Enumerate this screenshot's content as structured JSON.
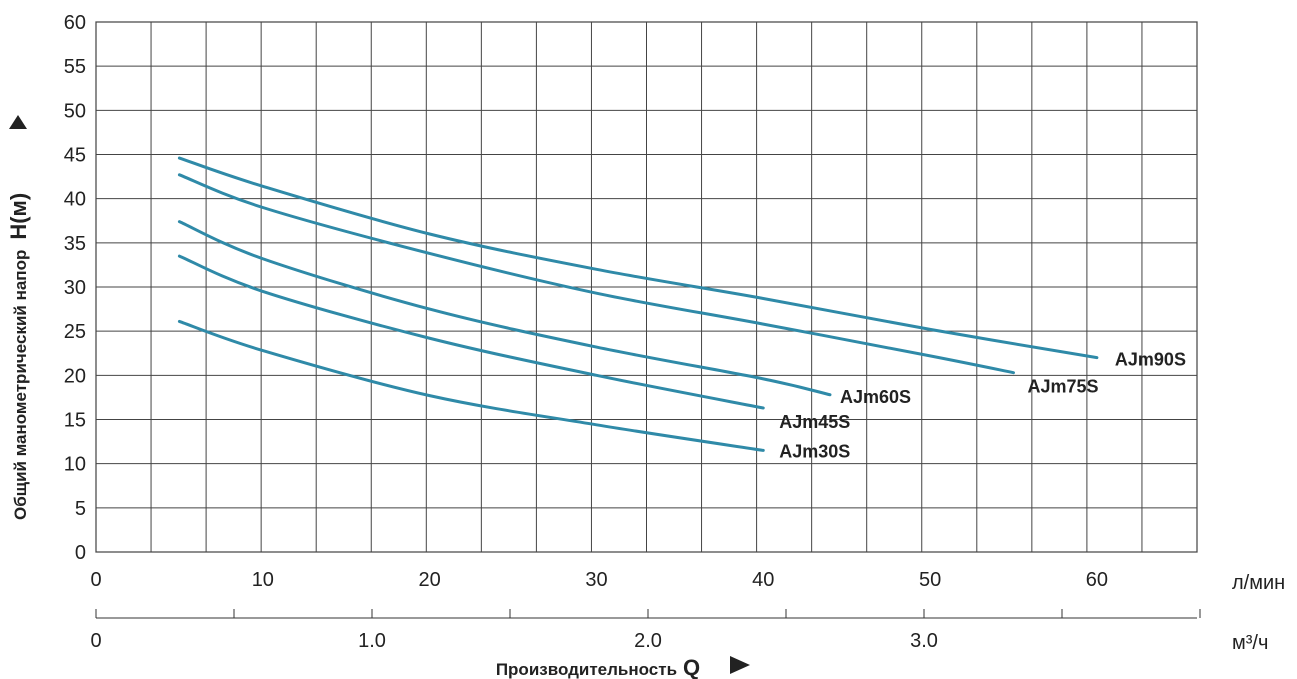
{
  "chart_data": {
    "type": "line",
    "xlabel": "Производительность",
    "xlabel_symbol": "Q",
    "ylabel": "Общий манометрический напор",
    "ylabel_symbol": "H(м)",
    "x_unit": "л/мин",
    "x2_unit": "м³/ч",
    "xlim": [
      0,
      66
    ],
    "ylim": [
      0,
      60
    ],
    "x_ticks": [
      "0",
      "10",
      "20",
      "30",
      "40",
      "50",
      "60"
    ],
    "x2_ticks": [
      "0",
      "1.0",
      "2.0",
      "3.0"
    ],
    "y_ticks": [
      "0",
      "5",
      "10",
      "15",
      "20",
      "25",
      "30",
      "35",
      "40",
      "45",
      "50",
      "55",
      "60"
    ],
    "grid": true,
    "line_color": "#2f8aa8",
    "series": [
      {
        "name": "AJm90S",
        "x": [
          5,
          10,
          20,
          30,
          40,
          50,
          60
        ],
        "y": [
          44.6,
          41.4,
          36.0,
          32.0,
          28.7,
          25.2,
          22.0
        ]
      },
      {
        "name": "AJm75S",
        "x": [
          5,
          10,
          20,
          30,
          40,
          50,
          55
        ],
        "y": [
          42.7,
          39.0,
          33.8,
          29.3,
          25.8,
          22.2,
          20.3
        ]
      },
      {
        "name": "AJm60S",
        "x": [
          5,
          10,
          20,
          30,
          40,
          44
        ],
        "y": [
          37.4,
          33.2,
          27.5,
          23.2,
          19.6,
          17.8
        ]
      },
      {
        "name": "AJm45S",
        "x": [
          5,
          10,
          20,
          30,
          40
        ],
        "y": [
          33.5,
          29.5,
          24.2,
          20.0,
          16.3
        ]
      },
      {
        "name": "AJm30S",
        "x": [
          5,
          10,
          20,
          30,
          40
        ],
        "y": [
          26.1,
          22.8,
          17.7,
          14.4,
          11.5
        ]
      }
    ]
  }
}
